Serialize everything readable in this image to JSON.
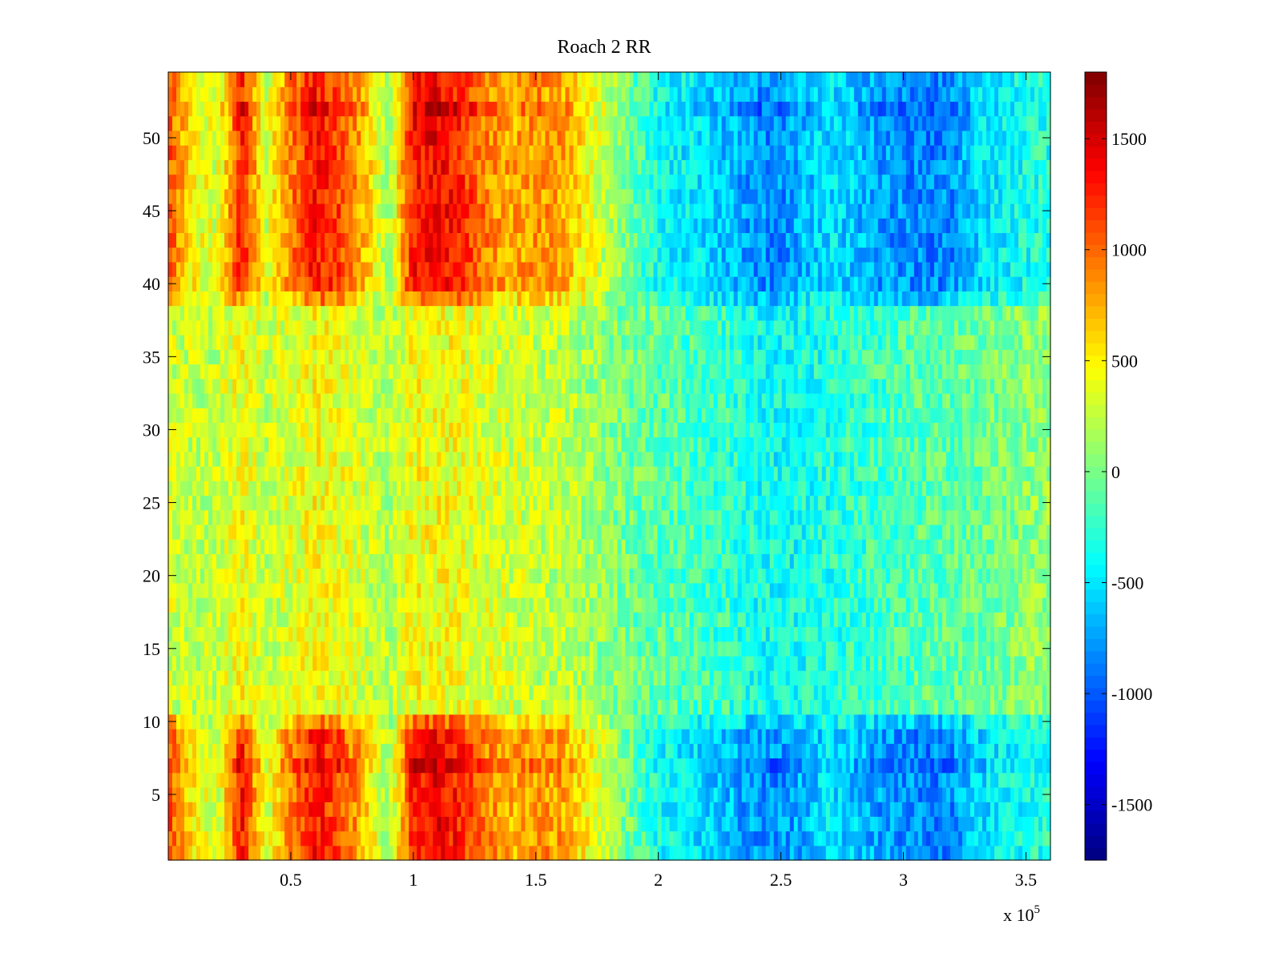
{
  "chart_data": {
    "type": "heatmap",
    "title": "Roach 2 RR",
    "xlabel": "",
    "ylabel": "",
    "x_exponent_label": "x 10",
    "x_exponent_power": "5",
    "xlim": [
      0.0,
      3.6
    ],
    "ylim": [
      0.5,
      54.5
    ],
    "x_ticks": [
      0.5,
      1,
      1.5,
      2,
      2.5,
      3,
      3.5
    ],
    "x_tick_labels": [
      "0.5",
      "1",
      "1.5",
      "2",
      "2.5",
      "3",
      "3.5"
    ],
    "y_ticks": [
      5,
      10,
      15,
      20,
      25,
      30,
      35,
      40,
      45,
      50
    ],
    "y_tick_labels": [
      "5",
      "10",
      "15",
      "20",
      "25",
      "30",
      "35",
      "40",
      "45",
      "50"
    ],
    "colorbar": {
      "colormap": "jet",
      "clim": [
        -1750,
        1800
      ],
      "ticks": [
        1500,
        1000,
        500,
        0,
        -500,
        -1000,
        -1500
      ],
      "tick_labels": [
        "1500",
        "1000",
        "500",
        "0",
        "-500",
        "-1000",
        "-1500"
      ]
    },
    "rows": 54,
    "column_groups_x": [
      0.0,
      0.1,
      0.2,
      0.3,
      0.4,
      0.5,
      0.6,
      0.7,
      0.8,
      0.9,
      1.0,
      1.1,
      1.2,
      1.3,
      1.4,
      1.5,
      1.6,
      1.7,
      1.8,
      1.9,
      2.0,
      2.1,
      2.2,
      2.3,
      2.4,
      2.5,
      2.6,
      2.7,
      2.8,
      2.9,
      3.0,
      3.1,
      3.2,
      3.3,
      3.4,
      3.5,
      3.6
    ],
    "approx_profile_rows_1_10_and_39_54": [
      1100,
      500,
      300,
      1300,
      300,
      900,
      1300,
      1100,
      700,
      100,
      1300,
      1400,
      1200,
      900,
      750,
      850,
      800,
      500,
      200,
      -100,
      -350,
      -450,
      -550,
      -650,
      -800,
      -800,
      -650,
      -500,
      -600,
      -750,
      -800,
      -850,
      -800,
      -550,
      -450,
      -350,
      -300
    ],
    "approx_profile_rows_11_38": [
      300,
      250,
      250,
      450,
      250,
      350,
      450,
      400,
      300,
      200,
      450,
      450,
      400,
      350,
      300,
      250,
      250,
      150,
      50,
      -50,
      -100,
      -150,
      -200,
      -250,
      -350,
      -400,
      -350,
      -300,
      -250,
      -200,
      -150,
      -100,
      -100,
      -50,
      0,
      50,
      100
    ]
  }
}
